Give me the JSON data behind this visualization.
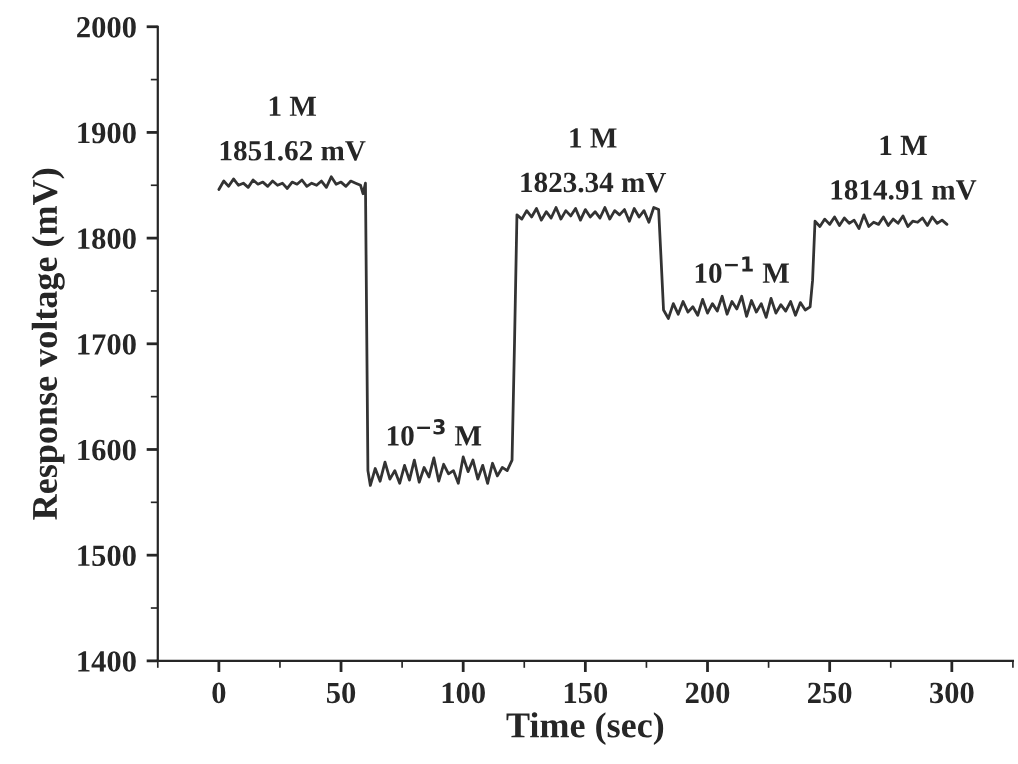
{
  "chart_data": {
    "type": "line",
    "xlabel": "Time (sec)",
    "ylabel": "Response voltage (mV)",
    "xlim": [
      -25,
      325
    ],
    "xticks": [
      0,
      50,
      100,
      150,
      200,
      250,
      300
    ],
    "ylim": [
      1400,
      2000
    ],
    "yticks": [
      1400,
      1500,
      1600,
      1700,
      1800,
      1900,
      2000
    ],
    "grid": false,
    "marker": "none",
    "line_style": "solid",
    "series": [
      {
        "color": "#333333",
        "x": [
          0,
          2,
          4,
          6,
          8,
          10,
          12,
          14,
          16,
          18,
          20,
          22,
          24,
          26,
          28,
          30,
          32,
          34,
          36,
          38,
          40,
          42,
          44,
          46,
          48,
          50,
          52,
          54,
          56,
          58,
          59,
          60,
          61,
          62,
          64,
          66,
          68,
          70,
          72,
          74,
          76,
          78,
          80,
          82,
          84,
          86,
          88,
          90,
          92,
          94,
          96,
          98,
          100,
          102,
          104,
          106,
          108,
          110,
          112,
          114,
          116,
          118,
          120,
          121,
          122,
          124,
          126,
          128,
          130,
          132,
          134,
          136,
          138,
          140,
          142,
          144,
          146,
          148,
          150,
          152,
          154,
          156,
          158,
          160,
          162,
          164,
          166,
          168,
          170,
          172,
          174,
          176,
          178,
          180,
          181,
          182,
          184,
          186,
          188,
          190,
          192,
          194,
          196,
          198,
          200,
          202,
          204,
          206,
          208,
          210,
          212,
          214,
          216,
          218,
          220,
          222,
          224,
          226,
          228,
          230,
          232,
          234,
          236,
          238,
          240,
          242,
          243,
          244,
          246,
          248,
          250,
          252,
          254,
          256,
          258,
          260,
          262,
          264,
          266,
          268,
          270,
          272,
          274,
          276,
          278,
          280,
          282,
          284,
          286,
          288,
          290,
          292,
          294,
          296,
          298
        ],
        "values": [
          1846,
          1854,
          1849,
          1856,
          1850,
          1852,
          1848,
          1855,
          1851,
          1853,
          1849,
          1854,
          1850,
          1852,
          1847,
          1853,
          1851,
          1855,
          1849,
          1852,
          1850,
          1854,
          1848,
          1858,
          1851,
          1853,
          1849,
          1854,
          1852,
          1850,
          1842,
          1852,
          1580,
          1566,
          1582,
          1570,
          1588,
          1572,
          1580,
          1568,
          1585,
          1571,
          1590,
          1569,
          1583,
          1574,
          1592,
          1570,
          1586,
          1577,
          1580,
          1568,
          1593,
          1579,
          1590,
          1572,
          1585,
          1568,
          1587,
          1575,
          1583,
          1580,
          1590,
          1700,
          1822,
          1818,
          1826,
          1820,
          1828,
          1817,
          1825,
          1819,
          1829,
          1818,
          1826,
          1821,
          1828,
          1817,
          1827,
          1820,
          1825,
          1819,
          1829,
          1818,
          1826,
          1822,
          1827,
          1816,
          1828,
          1820,
          1826,
          1815,
          1829,
          1827,
          1780,
          1732,
          1724,
          1738,
          1728,
          1740,
          1730,
          1735,
          1727,
          1742,
          1729,
          1738,
          1731,
          1745,
          1728,
          1740,
          1733,
          1745,
          1726,
          1741,
          1730,
          1738,
          1725,
          1743,
          1729,
          1737,
          1731,
          1740,
          1727,
          1739,
          1732,
          1735,
          1760,
          1816,
          1811,
          1818,
          1813,
          1820,
          1812,
          1819,
          1814,
          1817,
          1809,
          1822,
          1811,
          1815,
          1813,
          1820,
          1812,
          1818,
          1814,
          1821,
          1811,
          1816,
          1815,
          1819,
          1812,
          1820,
          1814,
          1817,
          1813
        ]
      }
    ],
    "annotations": [
      {
        "text": "1851.62 mV",
        "x": 30,
        "y": 1852
      },
      {
        "text": "1 M",
        "x": 30,
        "y": 1852
      },
      {
        "text": "10$^{−3}$ M",
        "x": 88,
        "y": 1582
      },
      {
        "text": "1823.34 mV",
        "x": 153,
        "y": 1822
      },
      {
        "text": "1 M",
        "x": 153,
        "y": 1822
      },
      {
        "text": "10$^{−1}$ M",
        "x": 214,
        "y": 1736
      },
      {
        "text": "1814.91 mV",
        "x": 280,
        "y": 1815
      },
      {
        "text": "1 M",
        "x": 280,
        "y": 1815
      }
    ]
  }
}
